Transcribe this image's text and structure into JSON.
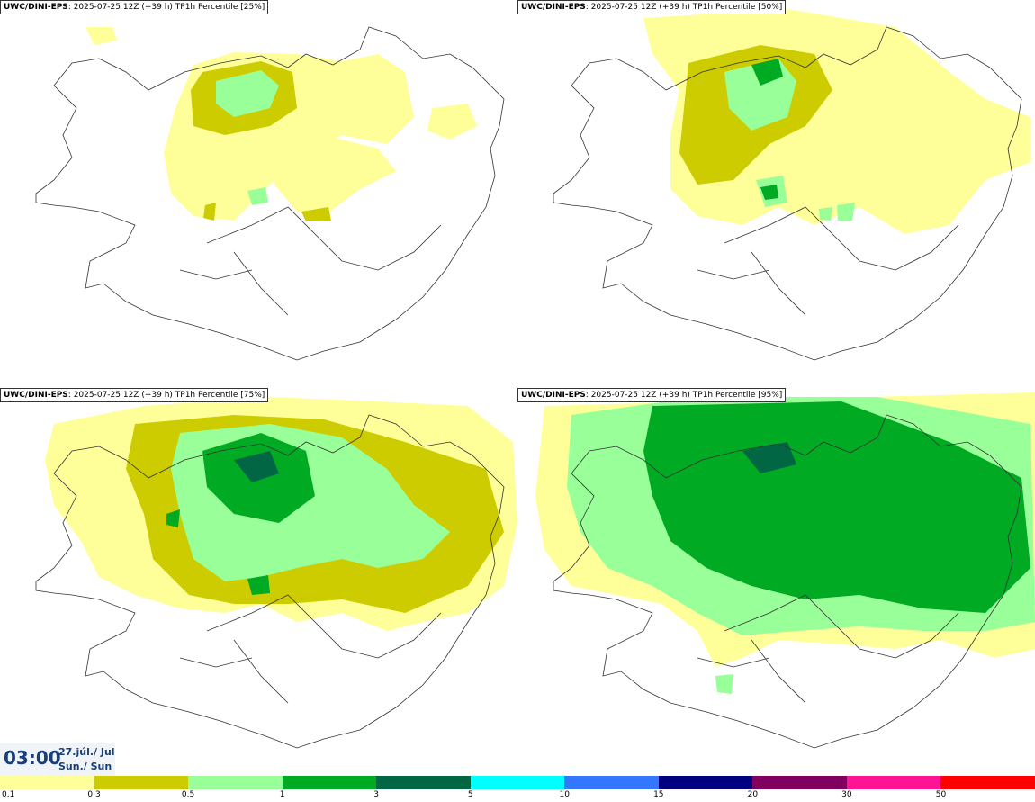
{
  "panels": [
    {
      "model": "UWC/DINI-EPS",
      "info": ": 2025-07-25 12Z (+39 h) TP1h Percentile [25%]"
    },
    {
      "model": "UWC/DINI-EPS",
      "info": ": 2025-07-25 12Z (+39 h) TP1h Percentile [50%]"
    },
    {
      "model": "UWC/DINI-EPS",
      "info": ": 2025-07-25 12Z (+39 h) TP1h Percentile [75%]"
    },
    {
      "model": "UWC/DINI-EPS",
      "info": ": 2025-07-25 12Z (+39 h) TP1h Percentile [95%]"
    }
  ],
  "valid": {
    "time": "03:00",
    "date": "27.júl./ Jul",
    "day": "Sun./ Sun"
  },
  "legend": {
    "labels": [
      "0.1",
      "0.3",
      "0.5",
      "1",
      "3",
      "5",
      "10",
      "15",
      "20",
      "30",
      "50"
    ],
    "colors": [
      "#ffff99",
      "#cccc00",
      "#99ff99",
      "#00aa22",
      "#006644",
      "#00ffff",
      "#3377ff",
      "#000080",
      "#800060",
      "#ff1493",
      "#ff0000"
    ]
  }
}
